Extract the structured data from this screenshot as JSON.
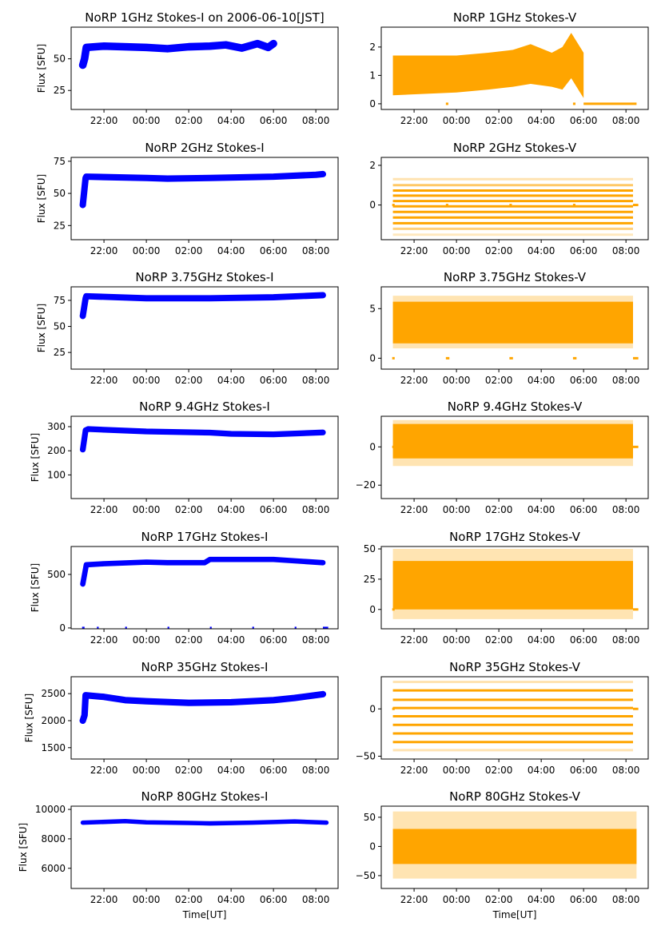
{
  "chart_data": [
    {
      "type": "scatter",
      "title": "NoRP 1GHz Stokes-I on 2006-06-10[JST]",
      "ylabel": "Flux [SFU]",
      "xlabel": "",
      "color": "#0000ff",
      "ylim": [
        10,
        75
      ],
      "yticks": [
        25,
        50
      ],
      "band": 3,
      "points": [
        [
          "21:00",
          45
        ],
        [
          "21:05",
          50
        ],
        [
          "21:10",
          59
        ],
        [
          "22:00",
          60
        ],
        [
          "00:00",
          59
        ],
        [
          "01:00",
          58
        ],
        [
          "02:00",
          59.5
        ],
        [
          "03:00",
          60
        ],
        [
          "03:45",
          61
        ],
        [
          "04:30",
          58.5
        ],
        [
          "05:15",
          62
        ],
        [
          "05:45",
          59
        ],
        [
          "06:00",
          62
        ]
      ]
    },
    {
      "type": "scatter",
      "title": "NoRP 1GHz Stokes-V",
      "ylabel": "",
      "xlabel": "",
      "color": "#ffa500",
      "ylim": [
        -0.2,
        2.7
      ],
      "yticks": [
        0,
        1,
        2
      ],
      "envelope": [
        [
          "21:00",
          0.3,
          1.7
        ],
        [
          "00:00",
          0.4,
          1.7
        ],
        [
          "01:30",
          0.5,
          1.8
        ],
        [
          "02:40",
          0.6,
          1.9
        ],
        [
          "03:30",
          0.7,
          2.1
        ],
        [
          "04:30",
          0.6,
          1.8
        ],
        [
          "05:00",
          0.5,
          2.0
        ],
        [
          "05:25",
          0.9,
          2.5
        ],
        [
          "05:50",
          0.4,
          2.0
        ],
        [
          "06:00",
          0.2,
          1.8
        ]
      ],
      "zero_segments": [
        [
          "23:30",
          "23:37"
        ],
        [
          "05:30",
          "05:37"
        ],
        [
          "06:00",
          "08:30"
        ]
      ]
    },
    {
      "type": "scatter",
      "title": "NoRP 2GHz Stokes-I",
      "ylabel": "Flux [SFU]",
      "xlabel": "",
      "color": "#0000ff",
      "ylim": [
        14,
        78
      ],
      "yticks": [
        25,
        50,
        75
      ],
      "band": 2.5,
      "points": [
        [
          "21:00",
          41
        ],
        [
          "21:08",
          62
        ],
        [
          "21:10",
          63
        ],
        [
          "00:00",
          62
        ],
        [
          "01:00",
          61.5
        ],
        [
          "03:00",
          62
        ],
        [
          "06:00",
          63
        ],
        [
          "08:00",
          64.5
        ],
        [
          "08:20",
          65
        ]
      ]
    },
    {
      "type": "scatter",
      "title": "NoRP 2GHz Stokes-V",
      "ylabel": "",
      "xlabel": "",
      "color": "#ffa500",
      "ylim": [
        -1.75,
        2.4
      ],
      "yticks": [
        0,
        2
      ],
      "levels": [
        [
          1.3,
          0.3
        ],
        [
          1.0,
          0.6
        ],
        [
          0.73,
          1
        ],
        [
          0.47,
          1
        ],
        [
          0.2,
          1
        ],
        [
          -0.07,
          1
        ],
        [
          -0.35,
          1
        ],
        [
          -0.63,
          1
        ],
        [
          -0.92,
          1
        ],
        [
          -1.2,
          0.5
        ],
        [
          -1.5,
          0.25
        ]
      ],
      "range": [
        "21:00",
        "08:20"
      ],
      "zero_segments": [
        [
          "20:58",
          "21:05"
        ],
        [
          "23:30",
          "23:37"
        ],
        [
          "02:30",
          "02:37"
        ],
        [
          "05:30",
          "05:37"
        ],
        [
          "08:20",
          "08:35"
        ]
      ]
    },
    {
      "type": "scatter",
      "title": "NoRP 3.75GHz Stokes-I",
      "ylabel": "Flux [SFU]",
      "xlabel": "",
      "color": "#0000ff",
      "ylim": [
        9,
        88
      ],
      "yticks": [
        25,
        50,
        75
      ],
      "band": 3,
      "points": [
        [
          "21:00",
          60
        ],
        [
          "21:08",
          77
        ],
        [
          "21:10",
          79
        ],
        [
          "00:00",
          77
        ],
        [
          "03:00",
          77
        ],
        [
          "06:00",
          78
        ],
        [
          "08:20",
          80
        ]
      ]
    },
    {
      "type": "scatter",
      "title": "NoRP 3.75GHz Stokes-V",
      "ylabel": "",
      "xlabel": "",
      "color": "#ffa500",
      "ylim": [
        -1.1,
        7.2
      ],
      "yticks": [
        0,
        5
      ],
      "envelope": [
        [
          "21:00",
          1.5,
          5.7
        ],
        [
          "08:20",
          1.5,
          5.7
        ]
      ],
      "faint_envelope": [
        [
          "21:00",
          1.0,
          6.3
        ],
        [
          "08:20",
          1.0,
          6.3
        ]
      ],
      "zero_segments": [
        [
          "20:58",
          "21:05"
        ],
        [
          "23:30",
          "23:40"
        ],
        [
          "02:30",
          "02:40"
        ],
        [
          "05:30",
          "05:40"
        ],
        [
          "08:20",
          "08:35"
        ]
      ]
    },
    {
      "type": "scatter",
      "title": "NoRP 9.4GHz Stokes-I",
      "ylabel": "Flux [SFU]",
      "xlabel": "",
      "color": "#0000ff",
      "ylim": [
        2,
        343
      ],
      "yticks": [
        100,
        200,
        300
      ],
      "band": 12,
      "points": [
        [
          "21:00",
          205
        ],
        [
          "21:08",
          285
        ],
        [
          "21:15",
          290
        ],
        [
          "00:00",
          280
        ],
        [
          "03:00",
          275
        ],
        [
          "04:00",
          270
        ],
        [
          "06:00",
          268
        ],
        [
          "08:20",
          276
        ]
      ]
    },
    {
      "type": "scatter",
      "title": "NoRP 9.4GHz Stokes-V",
      "ylabel": "",
      "xlabel": "",
      "color": "#ffa500",
      "ylim": [
        -27,
        16
      ],
      "yticks": [
        -20,
        0
      ],
      "envelope": [
        [
          "21:00",
          -6,
          12
        ],
        [
          "08:20",
          -6,
          12
        ]
      ],
      "faint_envelope": [
        [
          "21:00",
          -10,
          14
        ],
        [
          "08:20",
          -10,
          14
        ]
      ],
      "zero_segments": [
        [
          "20:58",
          "21:05"
        ],
        [
          "08:20",
          "08:35"
        ]
      ]
    },
    {
      "type": "scatter",
      "title": "NoRP 17GHz Stokes-I",
      "ylabel": "Flux [SFU]",
      "xlabel": "",
      "color": "#0000ff",
      "ylim": [
        -8,
        761
      ],
      "yticks": [
        0,
        500
      ],
      "band": 25,
      "points": [
        [
          "21:00",
          410
        ],
        [
          "21:10",
          590
        ],
        [
          "22:00",
          600
        ],
        [
          "00:00",
          615
        ],
        [
          "01:00",
          610
        ],
        [
          "02:45",
          610
        ],
        [
          "03:00",
          640
        ],
        [
          "06:00",
          640
        ],
        [
          "08:20",
          610
        ]
      ],
      "zero_segments": [
        [
          "20:58",
          "21:05"
        ],
        [
          "21:40",
          "21:45"
        ],
        [
          "23:00",
          "23:05"
        ],
        [
          "01:00",
          "01:05"
        ],
        [
          "03:00",
          "03:05"
        ],
        [
          "05:00",
          "05:05"
        ],
        [
          "07:00",
          "07:05"
        ],
        [
          "08:20",
          "08:35"
        ]
      ]
    },
    {
      "type": "scatter",
      "title": "NoRP 17GHz Stokes-V",
      "ylabel": "",
      "xlabel": "",
      "color": "#ffa500",
      "ylim": [
        -16,
        52
      ],
      "yticks": [
        0,
        25,
        50
      ],
      "envelope": [
        [
          "21:00",
          0,
          40
        ],
        [
          "08:20",
          0,
          40
        ]
      ],
      "faint_envelope": [
        [
          "21:00",
          -8,
          50
        ],
        [
          "08:20",
          -8,
          50
        ]
      ],
      "zero_segments": [
        [
          "20:58",
          "21:05"
        ],
        [
          "08:20",
          "08:35"
        ]
      ]
    },
    {
      "type": "scatter",
      "title": "NoRP 35GHz Stokes-I",
      "ylabel": "Flux [SFU]",
      "xlabel": "",
      "color": "#0000ff",
      "ylim": [
        1290,
        2813
      ],
      "yticks": [
        1500,
        2000,
        2500
      ],
      "band": 60,
      "points": [
        [
          "21:00",
          2000
        ],
        [
          "21:05",
          2100
        ],
        [
          "21:08",
          2470
        ],
        [
          "22:00",
          2440
        ],
        [
          "23:00",
          2380
        ],
        [
          "00:00",
          2360
        ],
        [
          "02:00",
          2330
        ],
        [
          "04:00",
          2340
        ],
        [
          "06:00",
          2380
        ],
        [
          "07:00",
          2420
        ],
        [
          "08:20",
          2490
        ]
      ]
    },
    {
      "type": "scatter",
      "title": "NoRP 35GHz Stokes-V",
      "ylabel": "",
      "xlabel": "",
      "color": "#ffa500",
      "ylim": [
        -53,
        34
      ],
      "yticks": [
        -50,
        0
      ],
      "levels": [
        [
          28.5,
          0.3
        ],
        [
          19.5,
          1
        ],
        [
          9.6,
          1
        ],
        [
          0.9,
          1
        ],
        [
          -7.8,
          1
        ],
        [
          -16.9,
          1
        ],
        [
          -26,
          1
        ],
        [
          -35,
          1
        ],
        [
          -43.6,
          0.3
        ]
      ],
      "range": [
        "21:00",
        "08:20"
      ],
      "zero_segments": [
        [
          "20:58",
          "21:05"
        ],
        [
          "08:20",
          "08:35"
        ]
      ]
    },
    {
      "type": "scatter",
      "title": "NoRP 80GHz Stokes-I",
      "ylabel": "Flux [SFU]",
      "xlabel": "Time[UT]",
      "color": "#0000ff",
      "ylim": [
        4630,
        10220
      ],
      "yticks": [
        6000,
        8000,
        10000
      ],
      "band": 150,
      "points": [
        [
          "21:00",
          9100
        ],
        [
          "23:00",
          9200
        ],
        [
          "00:00",
          9120
        ],
        [
          "02:00",
          9080
        ],
        [
          "03:00",
          9050
        ],
        [
          "05:00",
          9100
        ],
        [
          "07:00",
          9180
        ],
        [
          "08:30",
          9100
        ]
      ]
    },
    {
      "type": "scatter",
      "title": "NoRP 80GHz Stokes-V",
      "ylabel": "",
      "xlabel": "Time[UT]",
      "color": "#ffa500",
      "ylim": [
        -72,
        69
      ],
      "yticks": [
        -50,
        0,
        50
      ],
      "envelope": [
        [
          "21:00",
          -30,
          30
        ],
        [
          "08:30",
          -30,
          30
        ]
      ],
      "faint_envelope": [
        [
          "21:00",
          -55,
          60
        ],
        [
          "08:30",
          -55,
          60
        ]
      ]
    }
  ],
  "x_axis": {
    "xlim": [
      "20:27",
      "09:03"
    ],
    "xticks": [
      "22:00",
      "00:00",
      "02:00",
      "04:00",
      "06:00",
      "08:00"
    ]
  }
}
